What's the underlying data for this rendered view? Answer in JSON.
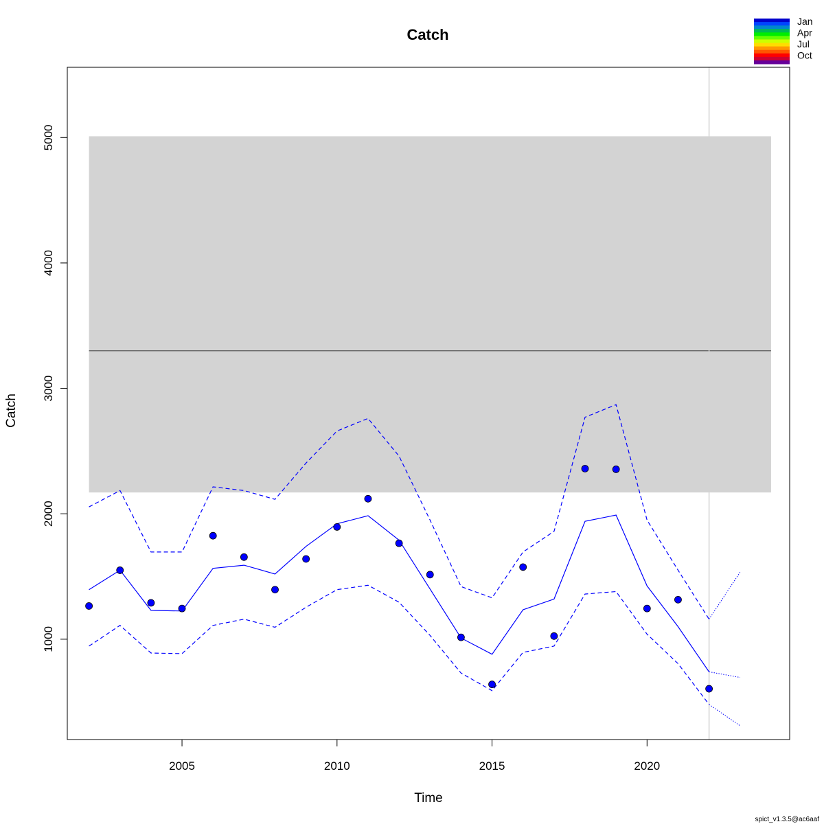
{
  "chart_data": {
    "type": "line",
    "title": "Catch",
    "xlabel": "Time",
    "ylabel": "Catch",
    "xlim": [
      2001.3,
      2024.6
    ],
    "ylim": [
      200,
      5560
    ],
    "xticks": [
      2005,
      2010,
      2015,
      2020
    ],
    "yticks": [
      1000,
      2000,
      3000,
      4000,
      5000
    ],
    "grid": false,
    "reference_band": {
      "low": 2170,
      "high": 5010,
      "color": "#d3d3d3"
    },
    "reference_line": {
      "value": 3300,
      "color": "#6b6b6b"
    },
    "vertical_line": {
      "x": 2022,
      "color": "#d3d3d3"
    },
    "observed_points": {
      "x": [
        2002,
        2003,
        2004,
        2005,
        2006,
        2007,
        2008,
        2009,
        2010,
        2011,
        2012,
        2013,
        2014,
        2015,
        2016,
        2017,
        2018,
        2019,
        2020,
        2021,
        2022
      ],
      "values": [
        1265,
        1550,
        1290,
        1245,
        1825,
        1655,
        1395,
        1640,
        1895,
        2120,
        1765,
        1515,
        1015,
        640,
        1575,
        1025,
        2360,
        2355,
        1245,
        1315,
        605
      ]
    },
    "series": [
      {
        "style": "solid",
        "x": [
          2002,
          2003,
          2004,
          2005,
          2006,
          2007,
          2008,
          2009,
          2010,
          2011,
          2012,
          2013,
          2014,
          2015,
          2016,
          2017,
          2018,
          2019,
          2020,
          2021,
          2022
        ],
        "values": [
          1395,
          1550,
          1230,
          1225,
          1565,
          1590,
          1520,
          1740,
          1920,
          1985,
          1790,
          1400,
          1010,
          880,
          1235,
          1320,
          1940,
          1990,
          1425,
          1100,
          740
        ]
      },
      {
        "style": "dashed",
        "x": [
          2002,
          2003,
          2004,
          2005,
          2006,
          2007,
          2008,
          2009,
          2010,
          2011,
          2012,
          2013,
          2014,
          2015,
          2016,
          2017,
          2018,
          2019,
          2020,
          2021,
          2022
        ],
        "values": [
          2055,
          2185,
          1695,
          1695,
          2215,
          2185,
          2115,
          2405,
          2660,
          2760,
          2460,
          1950,
          1420,
          1330,
          1695,
          1860,
          2770,
          2870,
          1950,
          1550,
          1160
        ]
      },
      {
        "style": "dashed",
        "x": [
          2002,
          2003,
          2004,
          2005,
          2006,
          2007,
          2008,
          2009,
          2010,
          2011,
          2012,
          2013,
          2014,
          2015,
          2016,
          2017,
          2018,
          2019,
          2020,
          2021,
          2022
        ],
        "values": [
          945,
          1110,
          890,
          885,
          1110,
          1160,
          1095,
          1255,
          1395,
          1430,
          1295,
          1030,
          730,
          590,
          895,
          945,
          1360,
          1380,
          1040,
          805,
          480
        ]
      },
      {
        "style": "dotted",
        "x": [
          2022,
          2023
        ],
        "values": [
          740,
          695
        ]
      },
      {
        "style": "dotted",
        "x": [
          2022,
          2023
        ],
        "values": [
          1160,
          1535
        ]
      },
      {
        "style": "dotted",
        "x": [
          2022,
          2023
        ],
        "values": [
          480,
          310
        ]
      }
    ],
    "series_color": "#0000ff",
    "legend": {
      "placement": "top-right",
      "entries": [
        "Jan",
        "Apr",
        "Jul",
        "Oct"
      ],
      "colors": [
        "#0000cc",
        "#0044ff",
        "#0088cc",
        "#00bb55",
        "#00ee00",
        "#66ff00",
        "#ccff00",
        "#ffdd00",
        "#ff9900",
        "#ff5500",
        "#ff0000",
        "#cc0033",
        "#660099"
      ]
    },
    "footer": "spict_v1.3.5@ac6aaf"
  }
}
